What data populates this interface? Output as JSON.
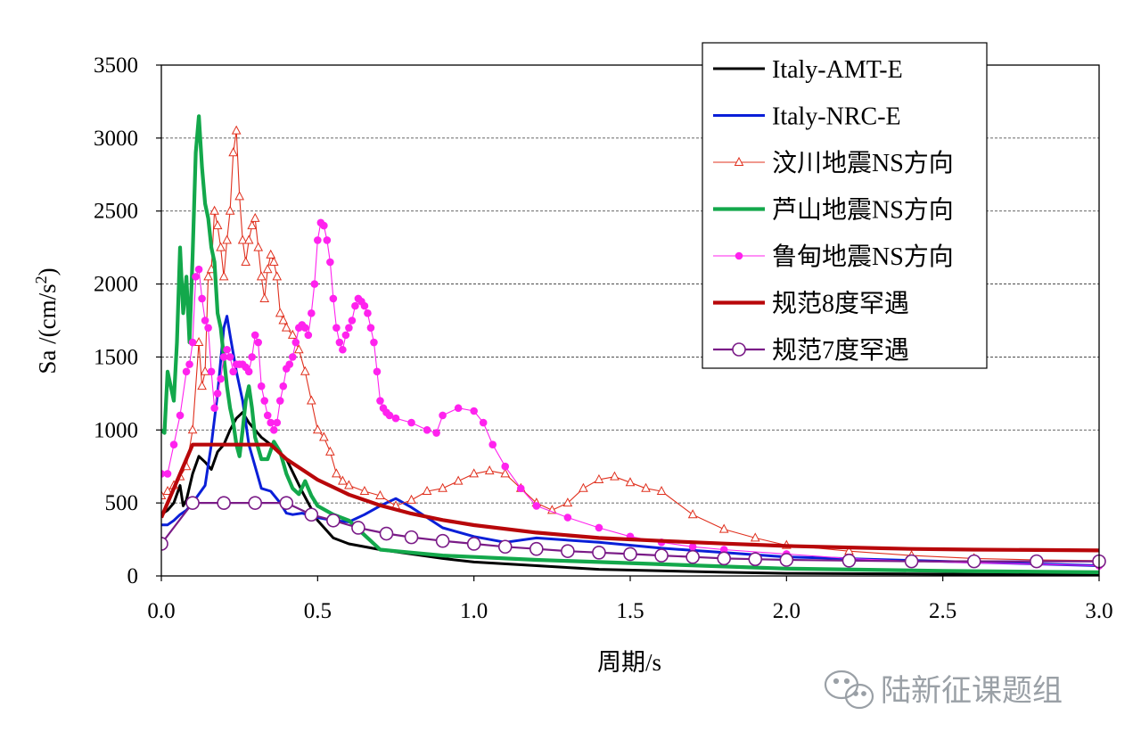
{
  "chart_data": {
    "type": "line",
    "xlabel": "周期/s",
    "ylabel": "Sa /(cm/s",
    "ylabel_sup": "2",
    "ylabel_end": ")",
    "xlim": [
      0,
      3
    ],
    "ylim": [
      0,
      3500
    ],
    "xticks": [
      0,
      0.5,
      1.0,
      1.5,
      2.0,
      2.5,
      3.0
    ],
    "xtick_labels": [
      "0.0",
      "0.5",
      "1.0",
      "1.5",
      "2.0",
      "2.5",
      "3.0"
    ],
    "yticks": [
      0,
      500,
      1000,
      1500,
      2000,
      2500,
      3000,
      3500
    ],
    "ytick_labels": [
      "0",
      "500",
      "1000",
      "1500",
      "2000",
      "2500",
      "3000",
      "3500"
    ],
    "grid": "horizontal dashed",
    "legend_position": "top-right",
    "series": [
      {
        "name": "Italy-AMT-E",
        "color": "#000000",
        "marker": "none",
        "x": [
          0,
          0.02,
          0.04,
          0.06,
          0.07,
          0.08,
          0.1,
          0.12,
          0.14,
          0.16,
          0.18,
          0.2,
          0.22,
          0.24,
          0.26,
          0.28,
          0.3,
          0.32,
          0.35,
          0.4,
          0.45,
          0.5,
          0.55,
          0.6,
          0.7,
          0.8,
          0.9,
          1.0,
          1.2,
          1.4,
          1.6,
          1.8,
          2.0,
          2.5,
          3.0
        ],
        "y": [
          420,
          450,
          500,
          620,
          480,
          520,
          700,
          820,
          780,
          730,
          850,
          900,
          1000,
          1080,
          1120,
          1050,
          1000,
          950,
          900,
          800,
          580,
          380,
          260,
          220,
          180,
          150,
          120,
          95,
          70,
          45,
          35,
          25,
          18,
          12,
          8
        ]
      },
      {
        "name": "Italy-NRC-E",
        "color": "#0a1fd8",
        "marker": "none",
        "x": [
          0,
          0.02,
          0.04,
          0.06,
          0.08,
          0.1,
          0.12,
          0.14,
          0.16,
          0.18,
          0.2,
          0.21,
          0.22,
          0.24,
          0.26,
          0.28,
          0.3,
          0.32,
          0.35,
          0.38,
          0.4,
          0.42,
          0.45,
          0.5,
          0.55,
          0.6,
          0.65,
          0.7,
          0.75,
          0.8,
          0.85,
          0.9,
          1.0,
          1.1,
          1.2,
          1.4,
          1.6,
          1.8,
          2.0,
          2.5,
          3.0
        ],
        "y": [
          350,
          350,
          380,
          420,
          450,
          500,
          560,
          620,
          900,
          1250,
          1700,
          1780,
          1650,
          1400,
          1200,
          900,
          750,
          600,
          580,
          500,
          430,
          420,
          430,
          400,
          380,
          370,
          420,
          480,
          530,
          470,
          400,
          330,
          270,
          230,
          260,
          230,
          190,
          160,
          130,
          100,
          70
        ]
      },
      {
        "name": "汶川地震NS方向",
        "color": "#e0301e",
        "marker": "triangle",
        "x": [
          0,
          0.02,
          0.04,
          0.06,
          0.08,
          0.1,
          0.12,
          0.13,
          0.14,
          0.15,
          0.16,
          0.17,
          0.18,
          0.19,
          0.2,
          0.21,
          0.22,
          0.23,
          0.24,
          0.25,
          0.26,
          0.27,
          0.28,
          0.29,
          0.3,
          0.31,
          0.32,
          0.33,
          0.34,
          0.35,
          0.36,
          0.37,
          0.38,
          0.39,
          0.4,
          0.42,
          0.44,
          0.46,
          0.48,
          0.5,
          0.52,
          0.54,
          0.56,
          0.58,
          0.6,
          0.65,
          0.7,
          0.75,
          0.8,
          0.85,
          0.9,
          0.95,
          1.0,
          1.05,
          1.1,
          1.15,
          1.2,
          1.25,
          1.3,
          1.35,
          1.4,
          1.45,
          1.5,
          1.55,
          1.6,
          1.7,
          1.8,
          1.9,
          2.0,
          2.2,
          2.4,
          2.6,
          2.8,
          3.0
        ],
        "y": [
          550,
          580,
          620,
          680,
          750,
          1000,
          1600,
          1300,
          1400,
          2050,
          2100,
          2500,
          2400,
          2250,
          2050,
          2300,
          2500,
          2900,
          3050,
          2600,
          2300,
          2150,
          2300,
          2400,
          2450,
          2250,
          2050,
          1900,
          2100,
          2200,
          2150,
          2050,
          1800,
          1750,
          1700,
          1650,
          1550,
          1400,
          1200,
          1000,
          950,
          850,
          700,
          650,
          620,
          580,
          550,
          480,
          520,
          580,
          600,
          650,
          700,
          720,
          700,
          600,
          500,
          450,
          500,
          600,
          660,
          680,
          640,
          600,
          580,
          420,
          320,
          260,
          210,
          170,
          140,
          120,
          110,
          105
        ]
      },
      {
        "name": "芦山地震NS方向",
        "color": "#13a84b",
        "marker": "none",
        "x": [
          0,
          0.01,
          0.02,
          0.03,
          0.04,
          0.05,
          0.06,
          0.07,
          0.08,
          0.09,
          0.1,
          0.11,
          0.12,
          0.13,
          0.14,
          0.15,
          0.16,
          0.17,
          0.18,
          0.19,
          0.2,
          0.21,
          0.22,
          0.23,
          0.24,
          0.25,
          0.26,
          0.27,
          0.28,
          0.29,
          0.3,
          0.32,
          0.34,
          0.36,
          0.38,
          0.4,
          0.42,
          0.44,
          0.46,
          0.48,
          0.5,
          0.55,
          0.6,
          0.65,
          0.7,
          0.75,
          0.8,
          0.9,
          1.0,
          1.2,
          1.4,
          1.6,
          1.8,
          2.0,
          2.5,
          3.0
        ],
        "y": [
          1000,
          980,
          1400,
          1300,
          1200,
          1600,
          2250,
          1800,
          2050,
          1600,
          2200,
          2900,
          3150,
          2800,
          2550,
          2450,
          2250,
          2150,
          1800,
          1700,
          1500,
          1300,
          1150,
          1050,
          900,
          820,
          1000,
          1200,
          1300,
          1150,
          950,
          800,
          800,
          920,
          850,
          700,
          600,
          560,
          650,
          550,
          480,
          420,
          380,
          280,
          180,
          170,
          160,
          140,
          130,
          110,
          95,
          80,
          65,
          50,
          35,
          25
        ]
      },
      {
        "name": "鲁甸地震NS方向",
        "color": "#ff22ee",
        "marker": "dot",
        "x": [
          0,
          0.02,
          0.04,
          0.06,
          0.08,
          0.09,
          0.1,
          0.11,
          0.12,
          0.13,
          0.14,
          0.15,
          0.16,
          0.17,
          0.18,
          0.19,
          0.2,
          0.21,
          0.22,
          0.23,
          0.24,
          0.25,
          0.26,
          0.27,
          0.28,
          0.29,
          0.3,
          0.31,
          0.32,
          0.33,
          0.34,
          0.35,
          0.36,
          0.37,
          0.38,
          0.39,
          0.4,
          0.41,
          0.42,
          0.43,
          0.44,
          0.45,
          0.46,
          0.47,
          0.48,
          0.49,
          0.5,
          0.51,
          0.52,
          0.53,
          0.54,
          0.55,
          0.56,
          0.57,
          0.58,
          0.59,
          0.6,
          0.61,
          0.62,
          0.63,
          0.64,
          0.65,
          0.66,
          0.67,
          0.68,
          0.69,
          0.7,
          0.71,
          0.72,
          0.73,
          0.75,
          0.8,
          0.85,
          0.88,
          0.9,
          0.95,
          1.0,
          1.03,
          1.06,
          1.1,
          1.15,
          1.2,
          1.3,
          1.4,
          1.5,
          1.6,
          1.7,
          1.8,
          2.0,
          2.2,
          2.4,
          2.6,
          2.8,
          3.0
        ],
        "y": [
          700,
          700,
          900,
          1100,
          1400,
          1450,
          1600,
          2050,
          2100,
          1900,
          1750,
          1700,
          1400,
          1150,
          1250,
          1350,
          1500,
          1550,
          1500,
          1400,
          1450,
          1450,
          1450,
          1430,
          1400,
          1500,
          1650,
          1600,
          1300,
          1200,
          1100,
          1050,
          1000,
          1050,
          1200,
          1300,
          1420,
          1450,
          1500,
          1600,
          1700,
          1720,
          1700,
          1650,
          1800,
          2000,
          2300,
          2420,
          2400,
          2300,
          2150,
          1900,
          1700,
          1600,
          1550,
          1650,
          1700,
          1750,
          1850,
          1900,
          1880,
          1850,
          1800,
          1700,
          1600,
          1400,
          1200,
          1150,
          1120,
          1100,
          1080,
          1050,
          1000,
          980,
          1100,
          1150,
          1130,
          1050,
          900,
          750,
          600,
          480,
          400,
          330,
          270,
          230,
          200,
          180,
          150,
          120,
          100,
          90,
          80,
          70
        ]
      },
      {
        "name": "规范8度罕遇",
        "color": "#b8070a",
        "marker": "none",
        "x": [
          0,
          0.1,
          0.35,
          0.4,
          0.5,
          0.6,
          0.7,
          0.8,
          0.9,
          1.0,
          1.2,
          1.4,
          1.6,
          1.8,
          2.0,
          2.2,
          2.4,
          2.6,
          2.8,
          3.0
        ],
        "y": [
          400,
          900,
          900,
          800,
          659,
          557,
          483,
          427,
          383,
          348,
          297,
          260,
          240,
          222,
          205,
          195,
          185,
          180,
          178,
          175
        ]
      },
      {
        "name": "规范7度罕遇",
        "color": "#7a1b87",
        "marker": "circle",
        "x": [
          0,
          0.1,
          0.2,
          0.3,
          0.4,
          0.48,
          0.55,
          0.63,
          0.72,
          0.8,
          0.9,
          1.0,
          1.1,
          1.2,
          1.3,
          1.4,
          1.5,
          1.6,
          1.7,
          1.8,
          1.9,
          2.0,
          2.2,
          2.4,
          2.6,
          2.8,
          3.0
        ],
        "y": [
          220,
          500,
          500,
          500,
          500,
          420,
          380,
          330,
          290,
          265,
          240,
          220,
          200,
          185,
          170,
          160,
          150,
          140,
          130,
          120,
          115,
          110,
          105,
          100,
          100,
          100,
          100
        ]
      }
    ]
  },
  "watermark": {
    "text": "陆新征课题组",
    "icon": "wechat-icon"
  }
}
